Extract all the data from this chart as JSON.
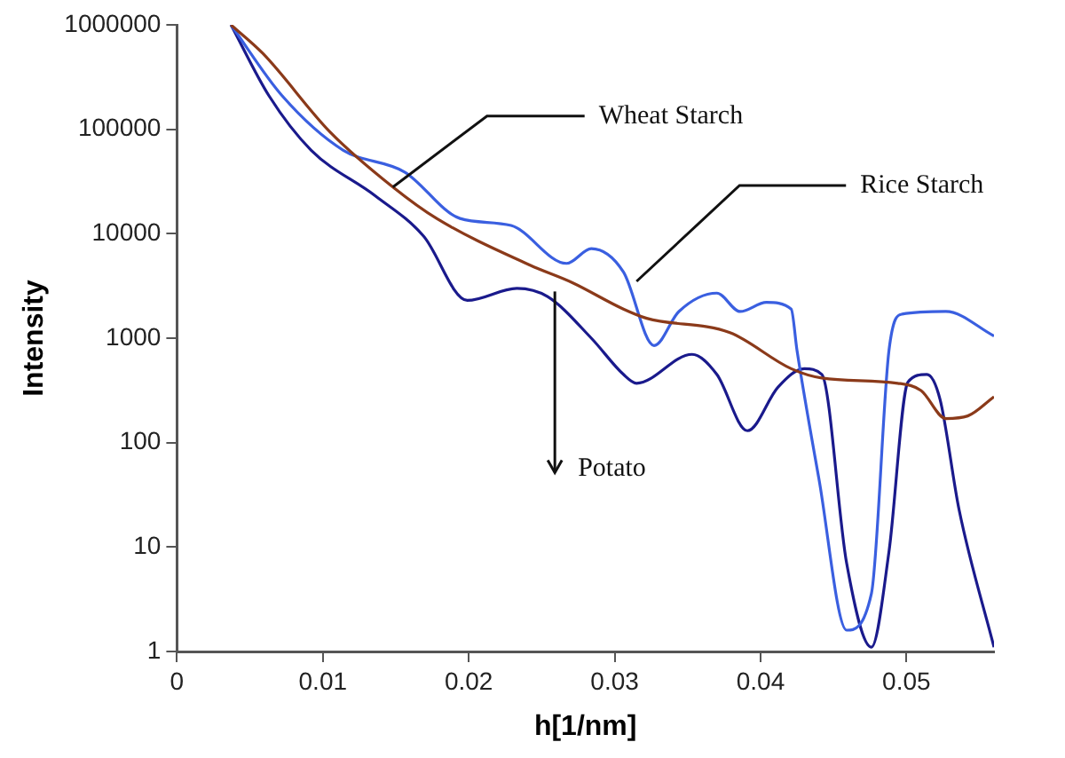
{
  "chart_data": {
    "type": "line",
    "xlabel": "h[1/nm]",
    "ylabel": "Intensity",
    "log": "y",
    "grid": false,
    "legend": false,
    "marker": "none",
    "line_style": "solid",
    "xlim": [
      0,
      0.056
    ],
    "xticks": [
      0,
      0.01,
      0.02,
      0.03,
      0.04,
      0.05
    ],
    "ylim": [
      1,
      1000000
    ],
    "yticks": [
      1,
      10,
      100,
      1000,
      10000,
      100000,
      1000000
    ],
    "series": [
      {
        "color": "#8b3a1a",
        "x": [
          0.0037,
          0.0059,
          0.0105,
          0.0148,
          0.0178,
          0.0242,
          0.0271,
          0.0306,
          0.0322,
          0.0379,
          0.0421,
          0.0442,
          0.0494,
          0.051,
          0.0527,
          0.0542,
          0.056
        ],
        "values": [
          1000000,
          530000,
          94000,
          28000,
          14000,
          5000,
          3400,
          1900,
          1550,
          1130,
          510,
          415,
          370,
          315,
          170,
          180,
          275
        ]
      },
      {
        "color": "#3a5fe0",
        "x": [
          0.0037,
          0.0072,
          0.0114,
          0.0156,
          0.0194,
          0.0229,
          0.0267,
          0.0284,
          0.0306,
          0.0327,
          0.0344,
          0.037,
          0.0386,
          0.0404,
          0.0421,
          0.0425,
          0.044,
          0.0459,
          0.0476,
          0.0488,
          0.0497,
          0.0527,
          0.056
        ],
        "values": [
          1000000,
          210000,
          63000,
          39000,
          14000,
          12000,
          5200,
          7200,
          4300,
          850,
          1800,
          2700,
          1800,
          2200,
          1900,
          760,
          45,
          1.6,
          3.6,
          760,
          1700,
          1800,
          1050
        ]
      },
      {
        "color": "#1a1a8c",
        "x": [
          0.0037,
          0.0063,
          0.0092,
          0.0136,
          0.0169,
          0.0199,
          0.0233,
          0.0254,
          0.0284,
          0.0306,
          0.0315,
          0.0353,
          0.037,
          0.0391,
          0.0412,
          0.043,
          0.0442,
          0.0459,
          0.0476,
          0.0488,
          0.0501,
          0.0514,
          0.0523,
          0.0536,
          0.056
        ],
        "values": [
          1000000,
          210000,
          63000,
          23000,
          9500,
          2300,
          3000,
          2500,
          1000,
          450,
          370,
          700,
          450,
          130,
          340,
          510,
          450,
          7,
          1.1,
          9,
          380,
          450,
          260,
          23,
          1.1
        ]
      }
    ],
    "annotations": [
      {
        "text": "Wheat Starch",
        "x": 0.0148,
        "y": 28000
      },
      {
        "text": "Rice Starch",
        "x": 0.0315,
        "y": 3500
      },
      {
        "text": "Potato",
        "x": 0.0259,
        "y": 2800
      }
    ]
  }
}
